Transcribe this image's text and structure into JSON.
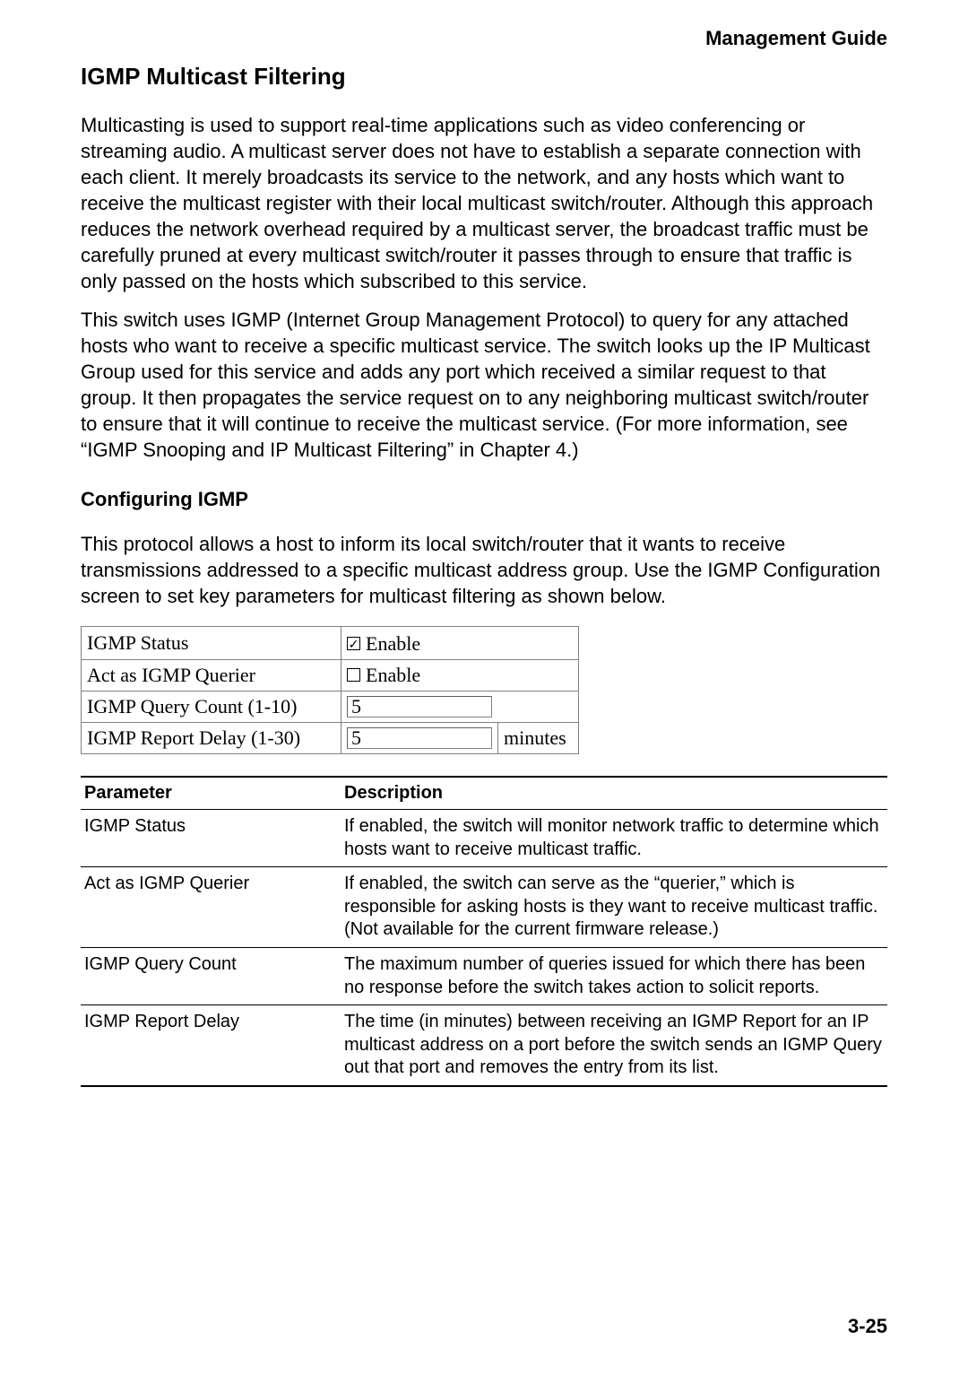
{
  "header": {
    "right": "Management Guide"
  },
  "title": "IGMP Multicast Filtering",
  "paragraphs": {
    "p1": "Multicasting is used to support real-time applications such as video conferencing or streaming audio. A multicast server does not have to establish a separate connection with each client. It merely broadcasts its service to the network, and any hosts which want to receive the multicast register with their local multicast switch/router. Although this approach reduces the network overhead required by a multicast server, the broadcast traffic must be carefully pruned at every multicast switch/router it passes through to ensure that traffic is only passed on the hosts which subscribed to this service.",
    "p2": "This switch uses IGMP (Internet Group Management Protocol) to query for any attached hosts who want to receive a specific multicast service. The switch looks up the IP Multicast Group used for this service and adds any port which received a similar request to that group. It then propagates the service request on to any neighboring multicast switch/router to ensure that it will continue to receive the multicast service. (For more information, see “IGMP Snooping and IP Multicast Filtering” in Chapter 4.)",
    "subheading": "Configuring IGMP",
    "p3": "This protocol allows a host to inform its local switch/router that it wants to receive transmissions addressed to a specific multicast address group. Use the IGMP Configuration screen to set key parameters for multicast filtering as shown below."
  },
  "config": {
    "rows": [
      {
        "label": "IGMP Status",
        "type": "checkbox",
        "checked": true,
        "text": "Enable"
      },
      {
        "label": "Act as IGMP Querier",
        "type": "checkbox",
        "checked": false,
        "text": "Enable"
      },
      {
        "label": "IGMP Query Count (1-10)",
        "type": "number",
        "value": "5",
        "unit": ""
      },
      {
        "label": "IGMP Report Delay (1-30)",
        "type": "number",
        "value": "5",
        "unit": "minutes"
      }
    ]
  },
  "descTable": {
    "headers": {
      "param": "Parameter",
      "desc": "Description"
    },
    "rows": [
      {
        "param": "IGMP Status",
        "desc": "If enabled, the switch will monitor network traffic to determine which hosts want to receive multicast traffic."
      },
      {
        "param": "Act as IGMP Querier",
        "desc": "If enabled, the switch can serve as the “querier,” which is responsible for asking hosts is they want to receive multicast traffic. (Not available for the current firmware release.)"
      },
      {
        "param": "IGMP Query Count",
        "desc": "The maximum number of queries issued for which there has been no response before the switch takes action to solicit reports."
      },
      {
        "param": "IGMP Report Delay",
        "desc": "The time (in minutes) between receiving an IGMP Report for an IP multicast address on a port before the switch sends an IGMP Query out that port and removes the entry from its list."
      }
    ]
  },
  "pageNumber": "3-25",
  "checkmark": "✓"
}
